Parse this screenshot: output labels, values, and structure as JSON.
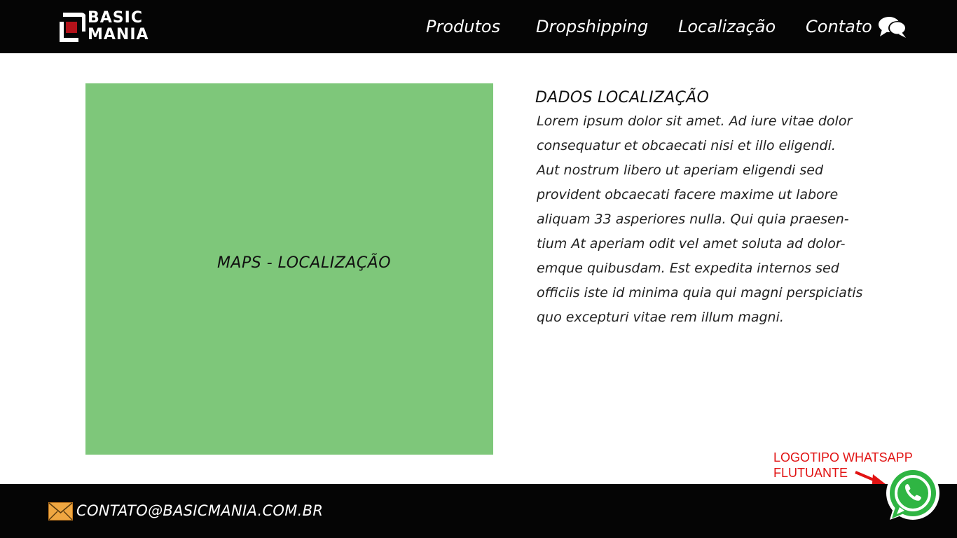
{
  "header": {
    "logo": {
      "line1": "BASIC",
      "line2": "MANIA"
    },
    "nav": [
      {
        "label": "Produtos"
      },
      {
        "label": "Dropshipping"
      },
      {
        "label": "Localização"
      },
      {
        "label": "Contato"
      }
    ],
    "contact_icon": "chat-bubbles-icon"
  },
  "main": {
    "map_placeholder": "MAPS - LOCALIZAÇÃO",
    "info_title": "DADOS LOCALIZAÇÃO",
    "info_lines": [
      "Lorem ipsum dolor sit amet. Ad iure vitae dolor",
      "consequatur et obcaecati nisi et illo eligendi.",
      "Aut nostrum libero ut aperiam eligendi sed",
      "provident obcaecati facere maxime ut labore",
      "aliquam 33 asperiores nulla. Qui quia praesen-",
      "tium At aperiam odit vel amet soluta ad dolor-",
      "emque quibusdam. Est expedita internos sed",
      "officiis iste id minima quia qui magni perspiciatis",
      "quo excepturi vitae rem illum magni."
    ]
  },
  "annotation": {
    "line1": "LOGOTIPO WHATSAPP",
    "line2": "FLUTUANTE"
  },
  "footer": {
    "email_icon": "envelope-icon",
    "email": "CONTATO@BASICMANIA.COM.BR"
  },
  "floating_button": {
    "icon": "whatsapp-icon"
  },
  "colors": {
    "header_bg": "#050505",
    "map_bg": "#7ec77a",
    "annotation": "#e11313",
    "whatsapp_green": "#2fb543",
    "logo_accent": "#b3121a"
  }
}
